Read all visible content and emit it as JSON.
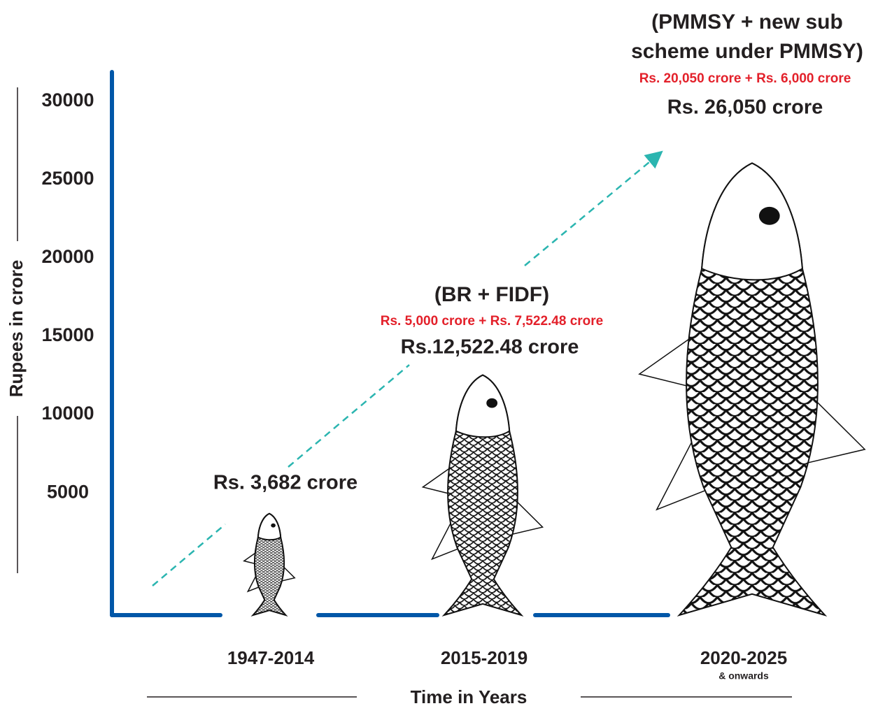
{
  "chart_data": {
    "type": "pictograph",
    "categories": [
      "1947-2014",
      "2015-2019",
      "2020-2025"
    ],
    "category_notes": [
      null,
      null,
      "& onwards"
    ],
    "values": [
      3682,
      12522.48,
      26050
    ],
    "value_labels": [
      "Rs. 3,682 crore",
      "Rs.12,522.48 crore",
      "Rs. 26,050 crore"
    ],
    "schemes": [
      null,
      [
        "(BR + FIDF)"
      ],
      [
        "(PMMSY + new sub",
        "scheme under PMMSY)"
      ]
    ],
    "breakdowns": [
      null,
      "Rs. 5,000 crore + Rs. 7,522.48 crore",
      "Rs. 20,050 crore + Rs. 6,000 crore"
    ],
    "ylim": [
      -2800,
      32000
    ],
    "yticks": [
      5000,
      10000,
      15000,
      20000,
      25000,
      30000
    ],
    "y_label": "Rupees in crore",
    "x_label": "Time in Years",
    "axis_color": "#0057a8",
    "trend_color": "#2bb5b0"
  }
}
